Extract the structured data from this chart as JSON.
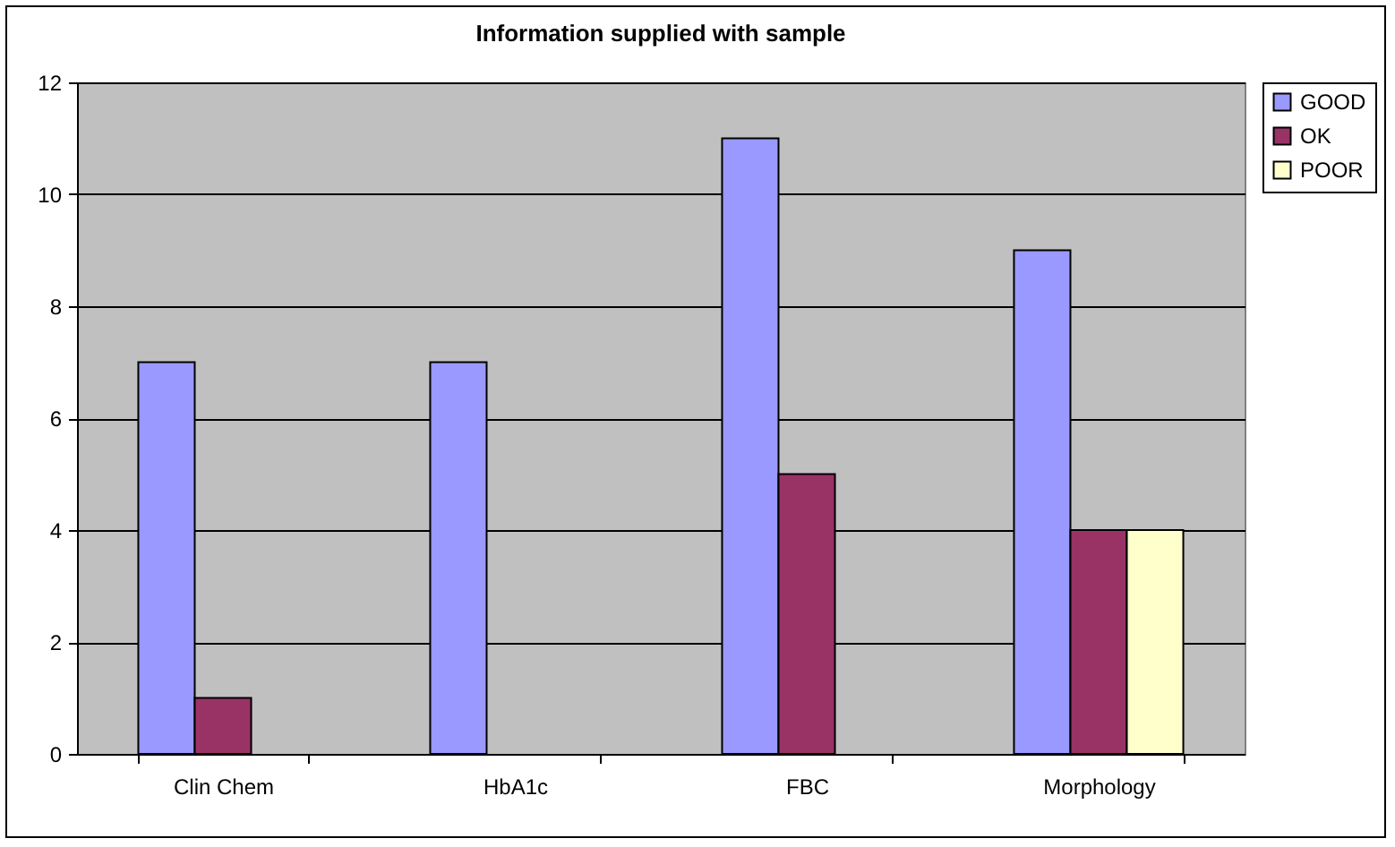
{
  "chart_data": {
    "type": "bar",
    "title": "Information supplied with sample",
    "categories": [
      "Clin Chem",
      "HbA1c",
      "FBC",
      "Morphology"
    ],
    "series": [
      {
        "name": "GOOD",
        "color": "#9999ff",
        "values": [
          7,
          7,
          11,
          9
        ]
      },
      {
        "name": "OK",
        "color": "#993366",
        "values": [
          1,
          null,
          5,
          4
        ]
      },
      {
        "name": "POOR",
        "color": "#ffffcc",
        "values": [
          null,
          null,
          null,
          4
        ]
      }
    ],
    "ylim": [
      0,
      12
    ],
    "yticks": [
      0,
      2,
      4,
      6,
      8,
      10,
      12
    ],
    "grid": "y",
    "legend": "right"
  }
}
